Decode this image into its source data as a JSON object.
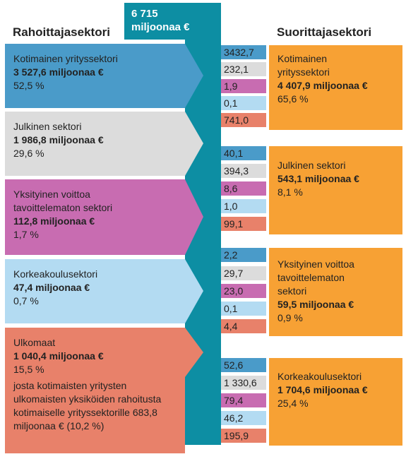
{
  "headers": {
    "funders": "Rahoittajasektori",
    "performers": "Suorittajasektori"
  },
  "total": {
    "value": "6 715",
    "unit": "miljoonaa €"
  },
  "colors": {
    "total_flow": "#0d8ea3",
    "performer_box": "#f7a134",
    "business": "#4a9bc9",
    "public": "#dcdcdc",
    "nonprofit": "#c86cb1",
    "higher_education": "#b3dbf2",
    "abroad": "#e8816a"
  },
  "funders": [
    {
      "id": "business",
      "name": "Kotimainen yrityssektori",
      "amount": "3 527,6 miljoonaa €",
      "share": "52,5 %",
      "color": "#4a9bc9"
    },
    {
      "id": "public",
      "name": "Julkinen sektori",
      "amount": "1 986,8 miljoonaa €",
      "share": "29,6 %",
      "color": "#dcdcdc"
    },
    {
      "id": "nonprofit",
      "name": "Yksityinen voittoa tavoittelematon sektori",
      "amount": "112,8 miljoonaa €",
      "share": "1,7 %",
      "color": "#c86cb1"
    },
    {
      "id": "higher-education",
      "name": "Korkeakoulusektori",
      "amount": "47,4 miljoonaa €",
      "share": "0,7 %",
      "color": "#b3dbf2"
    },
    {
      "id": "abroad",
      "name": "Ulkomaat",
      "amount": "1 040,4 miljoonaa €",
      "share": "15,5 %",
      "color": "#e8816a",
      "note": "josta kotimaisten yritysten ulkomaisten yksiköiden rahoitusta kotimaiselle yrityssektorille 683,8 miljoonaa € (10,2 %)"
    }
  ],
  "performers": [
    {
      "id": "business",
      "name": "Kotimainen yrityssektori",
      "amount": "4 407,9 miljoonaa €",
      "share": "65,6 %",
      "flows": [
        "3432,7",
        "232,1",
        "1,9",
        "0,1",
        "741,0"
      ]
    },
    {
      "id": "public",
      "name": "Julkinen sektori",
      "amount": "543,1 miljoonaa €",
      "share": "8,1 %",
      "flows": [
        "40,1",
        "394,3",
        "8,6",
        "1,0",
        "99,1"
      ]
    },
    {
      "id": "nonprofit",
      "name": "Yksityinen voittoa tavoittelematon sektori",
      "amount": "59,5 miljoonaa €",
      "share": "0,9 %",
      "flows": [
        "2,2",
        "29,7",
        "23,0",
        "0,1",
        "4,4"
      ]
    },
    {
      "id": "higher-education",
      "name": "Korkeakoulusektori",
      "amount": "1 704,6 miljoonaa €",
      "share": "25,4 %",
      "flows": [
        "52,6",
        "1 330,6",
        "79,4",
        "46,2",
        "195,9"
      ]
    }
  ]
}
